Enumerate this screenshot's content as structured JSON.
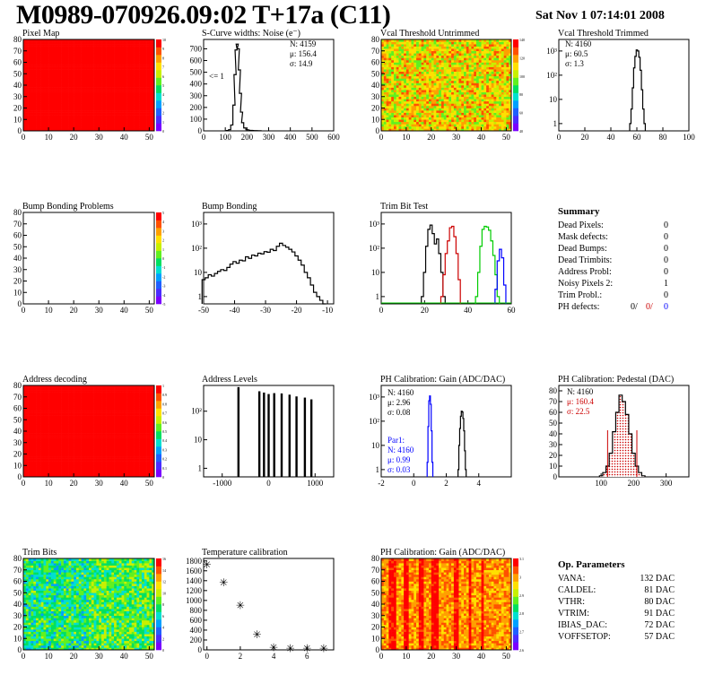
{
  "header": {
    "title": "M0989-070926.09:02 T+17a (C11)",
    "date": "Sat Nov  1 07:14:01 2008"
  },
  "panels": {
    "pixel_map": {
      "title": "Pixel Map"
    },
    "scurve": {
      "title": "S-Curve widths: Noise (e⁻)"
    },
    "vcal_untrimmed": {
      "title": "Vcal Threshold Untrimmed"
    },
    "vcal_trimmed": {
      "title": "Vcal Threshold Trimmed"
    },
    "bump_problems": {
      "title": "Bump Bonding Problems"
    },
    "bump_bonding": {
      "title": "Bump Bonding"
    },
    "trim_bit_test": {
      "title": "Trim Bit Test"
    },
    "address_decoding": {
      "title": "Address decoding"
    },
    "address_levels": {
      "title": "Address Levels"
    },
    "ph_gain": {
      "title": "PH Calibration: Gain (ADC/DAC)"
    },
    "ph_pedestal": {
      "title": "PH Calibration: Pedestal (DAC)"
    },
    "trim_bits": {
      "title": "Trim Bits"
    },
    "temperature": {
      "title": "Temperature calibration"
    },
    "ph_gain_map": {
      "title": "PH Calibration: Gain (ADC/DAC)"
    }
  },
  "stats": {
    "scurve": [
      "N: 4159",
      "μ: 156.4",
      "σ: 14.9"
    ],
    "scurve_marker": "<= 1",
    "vcal_trimmed": [
      "N: 4160",
      "μ: 60.5",
      "σ:  1.3"
    ],
    "ph_gain": [
      "N: 4160",
      "μ: 2.96",
      "σ: 0.08"
    ],
    "ph_gain_par1": [
      "Par1:",
      "N: 4160",
      "μ: 0.99",
      "σ: 0.03"
    ],
    "ph_pedestal": [
      "N: 4160",
      "μ: 160.4",
      "σ: 22.5"
    ]
  },
  "summary": {
    "heading": "Summary",
    "rows": [
      {
        "label": "Dead Pixels:",
        "value": "0"
      },
      {
        "label": "Mask defects:",
        "value": "0"
      },
      {
        "label": "Dead Bumps:",
        "value": "0"
      },
      {
        "label": "Dead Trimbits:",
        "value": "0"
      },
      {
        "label": "Address Probl:",
        "value": "0"
      },
      {
        "label": "Noisy Pixels 2:",
        "value": "1"
      },
      {
        "label": "Trim Probl.:",
        "value": "0"
      }
    ],
    "ph_defects": {
      "label": "PH defects:",
      "v1": "0/",
      "v2": "0/",
      "v3": "0"
    }
  },
  "op_params": {
    "heading": "Op. Parameters",
    "rows": [
      {
        "label": "VANA:",
        "value": "132 DAC"
      },
      {
        "label": "CALDEL:",
        "value": "81 DAC"
      },
      {
        "label": "VTHR:",
        "value": "80 DAC"
      },
      {
        "label": "VTRIM:",
        "value": "91 DAC"
      },
      {
        "label": "IBIAS_DAC:",
        "value": "72 DAC"
      },
      {
        "label": "VOFFSETOP:",
        "value": "57 DAC"
      }
    ]
  },
  "colors": {
    "red": "#ff0000",
    "blue": "#0000ff",
    "green": "#00cc00",
    "dark_red": "#cc0000"
  },
  "chart_data": [
    {
      "id": "pixel_map",
      "type": "heatmap",
      "title": "Pixel Map",
      "x_ticks": [
        "0",
        "10",
        "20",
        "30",
        "40",
        "50"
      ],
      "y_ticks": [
        "0",
        "10",
        "20",
        "30",
        "40",
        "50",
        "60",
        "70",
        "80"
      ],
      "xlim": [
        0,
        52
      ],
      "ylim": [
        0,
        80
      ],
      "uniform_value": 10,
      "palette_ticks": [
        "0",
        "1",
        "2",
        "3",
        "4",
        "5",
        "6",
        "7",
        "8",
        "9",
        "10"
      ]
    },
    {
      "id": "scurve",
      "type": "bar",
      "title": "S-Curve widths: Noise (e⁻)",
      "x_ticks": [
        "0",
        "100",
        "200",
        "300",
        "400",
        "500",
        "600"
      ],
      "y_ticks": [
        "0",
        "100",
        "200",
        "300",
        "400",
        "500",
        "600",
        "700"
      ],
      "xlim": [
        0,
        600
      ],
      "ylim": [
        0,
        780
      ],
      "x": [
        110,
        120,
        130,
        140,
        145,
        150,
        155,
        160,
        165,
        170,
        175,
        180,
        190,
        200,
        220,
        240,
        260
      ],
      "values": [
        3,
        10,
        50,
        220,
        480,
        690,
        740,
        700,
        520,
        320,
        160,
        70,
        25,
        10,
        4,
        2,
        1
      ]
    },
    {
      "id": "vcal_untrimmed",
      "type": "heatmap",
      "title": "Vcal Threshold Untrimmed",
      "x_ticks": [
        "0",
        "10",
        "20",
        "30",
        "40",
        "50"
      ],
      "y_ticks": [
        "0",
        "10",
        "20",
        "30",
        "40",
        "50",
        "60",
        "70",
        "80"
      ],
      "xlim": [
        0,
        52
      ],
      "ylim": [
        0,
        80
      ],
      "mean_value": 95,
      "palette_ticks": [
        "40",
        "60",
        "80",
        "100",
        "120",
        "140"
      ]
    },
    {
      "id": "vcal_trimmed",
      "type": "bar",
      "title": "Vcal Threshold Trimmed",
      "log_y": true,
      "x_ticks": [
        "0",
        "20",
        "40",
        "60",
        "80",
        "100"
      ],
      "y_ticks": [
        "1",
        "10",
        "10²",
        "10³"
      ],
      "xlim": [
        0,
        100
      ],
      "ylim": [
        0.5,
        3000
      ],
      "x": [
        55,
        56,
        57,
        58,
        59,
        60,
        61,
        62,
        63,
        64,
        65,
        66
      ],
      "values": [
        1,
        4,
        30,
        200,
        600,
        1100,
        1000,
        550,
        160,
        25,
        4,
        1
      ]
    },
    {
      "id": "bump_problems",
      "type": "heatmap",
      "title": "Bump Bonding Problems",
      "x_ticks": [
        "0",
        "10",
        "20",
        "30",
        "40",
        "50"
      ],
      "y_ticks": [
        "0",
        "10",
        "20",
        "30",
        "40",
        "50",
        "60",
        "70",
        "80"
      ],
      "xlim": [
        0,
        52
      ],
      "ylim": [
        0,
        80
      ],
      "empty": true,
      "palette_ticks": [
        "-5",
        "-4",
        "-3",
        "-2",
        "-1",
        "0",
        "1",
        "2",
        "3",
        "4",
        "5"
      ]
    },
    {
      "id": "bump_bonding",
      "type": "bar",
      "title": "Bump Bonding",
      "log_y": true,
      "x_ticks": [
        "-50",
        "-40",
        "-30",
        "-20",
        "-10"
      ],
      "y_ticks": [
        "1",
        "10",
        "10²",
        "10³"
      ],
      "xlim": [
        -50,
        -8
      ],
      "ylim": [
        0.5,
        3000
      ],
      "x": [
        -50,
        -49,
        -48,
        -47,
        -46,
        -45,
        -44,
        -43,
        -42,
        -41,
        -40,
        -39,
        -38,
        -37,
        -36,
        -35,
        -34,
        -33,
        -32,
        -31,
        -30,
        -29,
        -28,
        -27,
        -26,
        -25,
        -24,
        -23,
        -22,
        -21,
        -20,
        -19,
        -18,
        -17,
        -16,
        -15,
        -14,
        -13,
        -12,
        -11
      ],
      "values": [
        5,
        6,
        8,
        7,
        9,
        11,
        13,
        12,
        16,
        22,
        28,
        24,
        32,
        30,
        44,
        38,
        52,
        48,
        62,
        58,
        72,
        68,
        90,
        80,
        120,
        160,
        130,
        110,
        90,
        70,
        48,
        32,
        20,
        10,
        6,
        3,
        1.5,
        1,
        0.7,
        0
      ]
    },
    {
      "id": "trim_bit_test",
      "type": "line",
      "title": "Trim Bit Test",
      "log_y": true,
      "x_ticks": [
        "0",
        "20",
        "40",
        "60"
      ],
      "y_ticks": [
        "1",
        "10",
        "10²",
        "10³"
      ],
      "xlim": [
        0,
        60
      ],
      "ylim": [
        0.5,
        3000
      ],
      "series": [
        {
          "color": "#000000",
          "x": [
            19,
            20,
            21,
            22,
            23,
            24,
            25,
            26,
            27,
            28,
            29
          ],
          "values": [
            1,
            10,
            120,
            600,
            900,
            400,
            150,
            240,
            60,
            10,
            1
          ]
        },
        {
          "color": "#cc0000",
          "x": [
            28,
            29,
            30,
            31,
            32,
            33,
            34,
            35,
            36
          ],
          "values": [
            1,
            8,
            60,
            200,
            700,
            800,
            300,
            60,
            5
          ]
        },
        {
          "color": "#00cc00",
          "x": [
            44,
            45,
            46,
            47,
            48,
            49,
            50,
            51,
            52,
            53,
            54
          ],
          "values": [
            1,
            10,
            120,
            600,
            800,
            750,
            550,
            200,
            50,
            8,
            1
          ]
        },
        {
          "color": "#0000ff",
          "x": [
            53,
            54,
            55,
            56,
            57
          ],
          "values": [
            2,
            30,
            90,
            40,
            3
          ]
        }
      ]
    },
    {
      "id": "address_decoding",
      "type": "heatmap",
      "title": "Address decoding",
      "x_ticks": [
        "0",
        "10",
        "20",
        "30",
        "40",
        "50"
      ],
      "y_ticks": [
        "0",
        "10",
        "20",
        "30",
        "40",
        "50",
        "60",
        "70",
        "80"
      ],
      "xlim": [
        0,
        52
      ],
      "ylim": [
        0,
        80
      ],
      "uniform_value": 1,
      "palette_ticks": [
        "0",
        "0.1",
        "0.2",
        "0.3",
        "0.4",
        "0.5",
        "0.6",
        "0.7",
        "0.8",
        "0.9",
        "1"
      ]
    },
    {
      "id": "address_levels",
      "type": "bar",
      "title": "Address Levels",
      "log_y": true,
      "x_ticks": [
        "-1000",
        "0",
        "1000"
      ],
      "y_ticks": [
        "1",
        "10",
        "10²"
      ],
      "xlim": [
        -1400,
        1400
      ],
      "ylim": [
        0.5,
        800
      ],
      "x": [
        -650,
        -200,
        -100,
        0,
        120,
        280,
        450,
        600,
        780,
        920
      ],
      "values": [
        700,
        500,
        450,
        400,
        430,
        420,
        380,
        330,
        300,
        260
      ]
    },
    {
      "id": "ph_gain",
      "type": "bar",
      "title": "PH Calibration: Gain (ADC/DAC)",
      "log_y": true,
      "x_ticks": [
        "-2",
        "0",
        "2",
        "4"
      ],
      "y_ticks": [
        "1",
        "10",
        "10²",
        "10³"
      ],
      "xlim": [
        -2,
        6
      ],
      "ylim": [
        0.5,
        3000
      ],
      "series": [
        {
          "name": "Par1",
          "color": "#0000ff",
          "x": [
            0.85,
            0.9,
            0.95,
            1.0,
            1.05,
            1.1,
            1.15
          ],
          "values": [
            2,
            60,
            700,
            1100,
            500,
            40,
            2
          ]
        },
        {
          "color": "#000000",
          "x": [
            2.75,
            2.8,
            2.85,
            2.9,
            2.95,
            3.0,
            3.05,
            3.1,
            3.15,
            3.2
          ],
          "values": [
            1,
            10,
            50,
            160,
            260,
            240,
            130,
            40,
            6,
            1
          ]
        }
      ]
    },
    {
      "id": "ph_pedestal",
      "type": "bar",
      "title": "PH Calibration: Pedestal (DAC)",
      "x_ticks": [
        "100",
        "200",
        "300"
      ],
      "y_ticks": [
        "0",
        "10",
        "20",
        "30",
        "40",
        "50",
        "60",
        "70",
        "80"
      ],
      "xlim": [
        -30,
        370
      ],
      "ylim": [
        0,
        85
      ],
      "x": [
        100,
        110,
        120,
        130,
        140,
        150,
        160,
        170,
        180,
        190,
        200,
        210,
        220,
        230
      ],
      "values": [
        1,
        4,
        10,
        22,
        42,
        60,
        76,
        70,
        58,
        40,
        22,
        10,
        4,
        1
      ]
    },
    {
      "id": "trim_bits",
      "type": "heatmap",
      "title": "Trim Bits",
      "x_ticks": [
        "0",
        "10",
        "20",
        "30",
        "40",
        "50"
      ],
      "y_ticks": [
        "0",
        "10",
        "20",
        "30",
        "40",
        "50",
        "60",
        "70",
        "80"
      ],
      "xlim": [
        0,
        52
      ],
      "ylim": [
        0,
        80
      ],
      "mean_value": 7,
      "palette_ticks": [
        "0",
        "2",
        "4",
        "6",
        "8",
        "10",
        "12",
        "14",
        "16"
      ]
    },
    {
      "id": "temperature",
      "type": "scatter",
      "title": "Temperature calibration",
      "x_ticks": [
        "0",
        "2",
        "4",
        "6"
      ],
      "y_ticks": [
        "0",
        "200",
        "400",
        "600",
        "800",
        "1000",
        "1200",
        "1400",
        "1600",
        "1800"
      ],
      "xlim": [
        -0.2,
        7.6
      ],
      "ylim": [
        0,
        1850
      ],
      "x": [
        0,
        1,
        2,
        3,
        4,
        5,
        6,
        7
      ],
      "values": [
        1720,
        1360,
        900,
        310,
        45,
        30,
        30,
        30
      ]
    },
    {
      "id": "ph_gain_map",
      "type": "heatmap",
      "title": "PH Calibration: Gain (ADC/DAC)",
      "x_ticks": [
        "0",
        "10",
        "20",
        "30",
        "40",
        "50"
      ],
      "y_ticks": [
        "0",
        "10",
        "20",
        "30",
        "40",
        "50",
        "60",
        "70",
        "80"
      ],
      "xlim": [
        0,
        52
      ],
      "ylim": [
        0,
        80
      ],
      "mean_value": 2.96,
      "palette_ticks": [
        "2.6",
        "2.7",
        "2.8",
        "2.9",
        "3",
        "3.1"
      ]
    }
  ]
}
